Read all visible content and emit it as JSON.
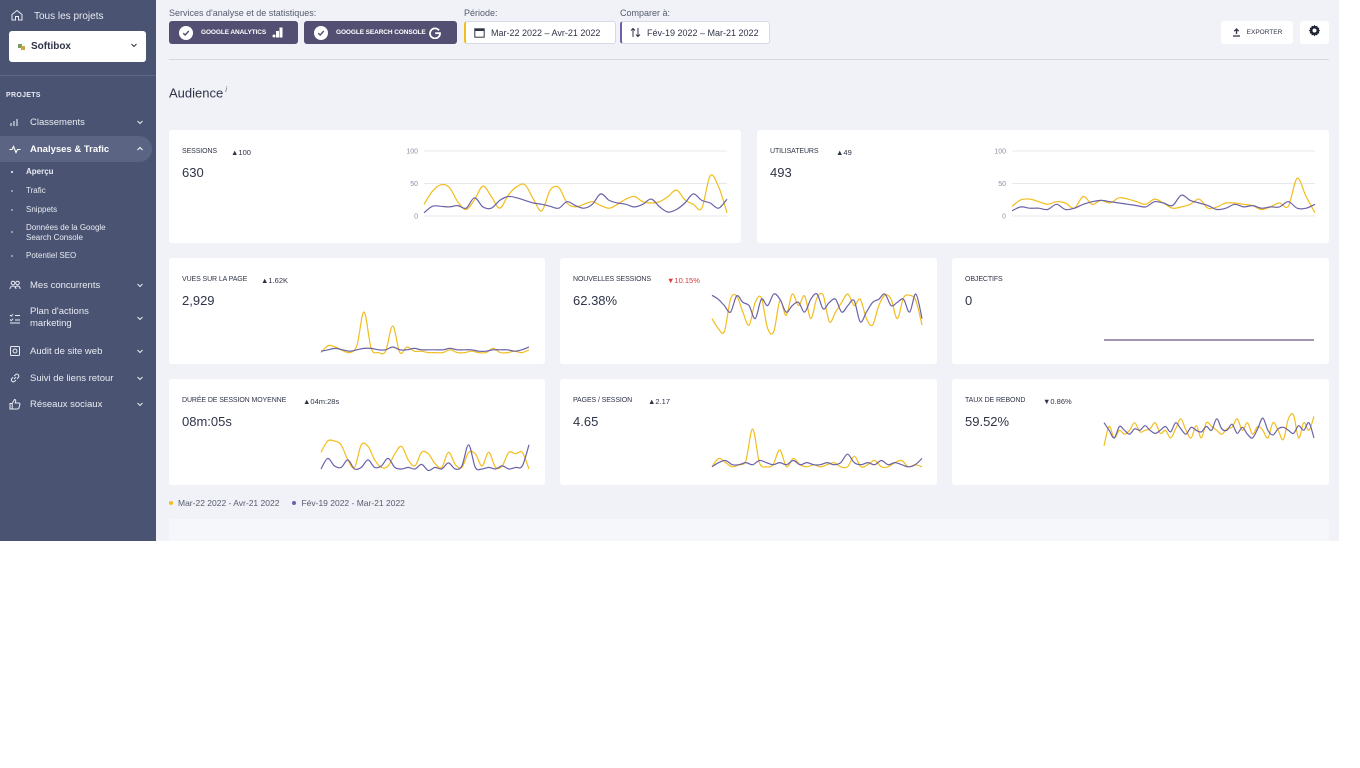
{
  "colors": {
    "period": "#f2bd1e",
    "compare": "#6b62a8",
    "sidebar": "#4a5472",
    "negative": "#d63b3b"
  },
  "sidebar": {
    "all_projects": "Tous les projets",
    "project": "Softibox",
    "section": "PROJETS",
    "items": [
      {
        "label": "Classements",
        "icon": "bar-chart-icon"
      },
      {
        "label": "Analyses & Trafic",
        "icon": "pulse-icon"
      },
      {
        "label": "Mes concurrents",
        "icon": "people-icon"
      },
      {
        "label": "Plan d'actions marketing",
        "icon": "checklist-icon"
      },
      {
        "label": "Audit de site web",
        "icon": "audit-icon"
      },
      {
        "label": "Suivi de liens retour",
        "icon": "link-icon"
      },
      {
        "label": "Réseaux sociaux",
        "icon": "thumbs-up-icon"
      }
    ],
    "sub_items": [
      "Aperçu",
      "Trafic",
      "Snippets",
      "Données de la Google Search Console",
      "Potentiel SEO"
    ]
  },
  "toolbar": {
    "services_label": "Services d'analyse et de statistiques:",
    "ga_label": "GOOGLE ANALYTICS",
    "gsc_label": "GOOGLE SEARCH CONSOLE",
    "period_label": "Période:",
    "period_value": "Mar-22 2022 – Avr-21 2022",
    "compare_label": "Comparer à:",
    "compare_value": "Fév-19 2022 – Mar-21 2022",
    "export_label": "EXPORTER"
  },
  "section_title": "Audience",
  "section_info": "i",
  "cards": [
    {
      "title": "SESSIONS",
      "change": "▲100",
      "change_dir": "up",
      "value": "630"
    },
    {
      "title": "UTILISATEURS",
      "change": "▲49",
      "change_dir": "up",
      "value": "493"
    },
    {
      "title": "VUES SUR LA PAGE",
      "change": "▲1.62K",
      "change_dir": "up",
      "value": "2,929"
    },
    {
      "title": "NOUVELLES SESSIONS",
      "change": "▼10.15%",
      "change_dir": "down",
      "value": "62.38%"
    },
    {
      "title": "OBJECTIFS",
      "change": "",
      "change_dir": "up",
      "value": "0"
    },
    {
      "title": "DURÉE DE SESSION MOYENNE",
      "change": "▲04m:28s",
      "change_dir": "up",
      "value": "08m:05s"
    },
    {
      "title": "PAGES / SESSION",
      "change": "▲2.17",
      "change_dir": "up",
      "value": "4.65"
    },
    {
      "title": "TAUX DE REBOND",
      "change": "▼0.86%",
      "change_dir": "up",
      "value": "59.52%"
    }
  ],
  "legend": {
    "period": "Mar-22 2022 - Avr-21 2022",
    "compare": "Fév-19 2022 - Mar-21 2022"
  },
  "chart_data": [
    {
      "type": "line",
      "name": "sessions",
      "yticks": [
        "100",
        "50",
        "0"
      ],
      "ylim": [
        0,
        100
      ],
      "series": [
        {
          "name": "Mar-22 2022 - Avr-21 2022",
          "values": [
            18,
            38,
            48,
            44,
            22,
            10,
            25,
            46,
            30,
            12,
            32,
            45,
            48,
            26,
            8,
            40,
            44,
            20,
            14,
            18,
            22,
            16,
            12,
            18,
            26,
            30,
            22,
            20,
            22,
            30,
            40,
            25,
            18,
            12,
            62,
            45,
            5
          ]
        },
        {
          "name": "Fév-19 2022 - Mar-21 2022",
          "values": [
            5,
            15,
            15,
            14,
            16,
            12,
            28,
            14,
            12,
            24,
            30,
            28,
            24,
            20,
            18,
            15,
            12,
            22,
            16,
            12,
            18,
            34,
            24,
            20,
            18,
            14,
            18,
            26,
            14,
            6,
            10,
            20,
            34,
            24,
            20,
            12,
            26
          ]
        }
      ]
    },
    {
      "type": "line",
      "name": "utilisateurs",
      "yticks": [
        "100",
        "50",
        "0"
      ],
      "ylim": [
        0,
        100
      ],
      "series": [
        {
          "name": "Mar-22 2022 - Avr-21 2022",
          "values": [
            15,
            25,
            26,
            22,
            18,
            22,
            20,
            12,
            30,
            18,
            24,
            20,
            28,
            26,
            22,
            18,
            26,
            20,
            12,
            14,
            18,
            26,
            12,
            14,
            20,
            20,
            18,
            16,
            10,
            14,
            20,
            15,
            58,
            30,
            5
          ]
        },
        {
          "name": "Fév-19 2022 - Mar-21 2022",
          "values": [
            8,
            14,
            12,
            12,
            10,
            18,
            10,
            12,
            18,
            22,
            24,
            22,
            20,
            18,
            16,
            14,
            22,
            20,
            16,
            32,
            24,
            20,
            16,
            10,
            12,
            18,
            14,
            16,
            12,
            14,
            14,
            22,
            12,
            12,
            18
          ]
        }
      ]
    },
    {
      "type": "line",
      "name": "vues",
      "series": [
        {
          "name": "Mar-22 2022 - Avr-21 2022",
          "values": [
            2,
            12,
            10,
            5,
            2,
            12,
            60,
            8,
            2,
            4,
            40,
            2,
            10,
            4,
            4,
            2,
            2,
            2,
            6,
            2,
            2,
            4,
            2,
            2,
            8,
            2,
            2,
            4,
            2,
            6
          ]
        },
        {
          "name": "Fév-19 2022 - Mar-21 2022",
          "values": [
            4,
            6,
            8,
            6,
            4,
            6,
            8,
            8,
            6,
            6,
            10,
            6,
            6,
            8,
            6,
            6,
            6,
            6,
            8,
            6,
            6,
            6,
            4,
            4,
            6,
            6,
            6,
            4,
            6,
            10
          ]
        }
      ]
    },
    {
      "type": "line",
      "name": "nouvelles",
      "series": [
        {
          "name": "Mar-22 2022 - Avr-21 2022",
          "values": [
            30,
            15,
            10,
            60,
            65,
            40,
            20,
            55,
            62,
            15,
            10,
            58,
            35,
            68,
            50,
            65,
            30,
            62,
            66,
            25,
            40,
            55,
            68,
            50,
            60,
            30,
            20,
            50,
            66,
            60,
            30,
            62,
            66,
            58,
            20
          ]
        },
        {
          "name": "Fév-19 2022 - Mar-21 2022",
          "values": [
            66,
            60,
            50,
            40,
            65,
            55,
            50,
            30,
            60,
            50,
            68,
            60,
            40,
            50,
            55,
            40,
            60,
            68,
            45,
            55,
            60,
            40,
            50,
            58,
            25,
            40,
            55,
            60,
            68,
            50,
            55,
            60,
            40,
            68,
            30
          ]
        }
      ]
    },
    {
      "type": "line",
      "name": "objectifs",
      "series": [
        {
          "name": "Mar-22 2022 - Avr-21 2022",
          "values": [
            0,
            0,
            0,
            0,
            0,
            0,
            0,
            0,
            0,
            0
          ]
        },
        {
          "name": "Fév-19 2022 - Mar-21 2022",
          "values": [
            0,
            0,
            0,
            0,
            0,
            0,
            0,
            0,
            0,
            0
          ]
        }
      ]
    },
    {
      "type": "line",
      "name": "duree",
      "series": [
        {
          "name": "Mar-22 2022 - Avr-21 2022",
          "values": [
            30,
            45,
            45,
            40,
            20,
            10,
            40,
            38,
            20,
            10,
            12,
            28,
            38,
            20,
            12,
            30,
            28,
            15,
            10,
            30,
            14,
            10,
            30,
            28,
            12,
            30,
            10,
            12,
            30,
            28,
            30,
            8
          ]
        },
        {
          "name": "Fév-19 2022 - Mar-21 2022",
          "values": [
            8,
            22,
            12,
            10,
            20,
            8,
            10,
            20,
            10,
            12,
            22,
            10,
            8,
            10,
            8,
            14,
            6,
            10,
            8,
            16,
            8,
            12,
            40,
            10,
            8,
            10,
            8,
            12,
            8,
            10,
            12,
            40
          ]
        }
      ]
    },
    {
      "type": "line",
      "name": "pages",
      "series": [
        {
          "name": "Mar-22 2022 - Avr-21 2022",
          "values": [
            4,
            12,
            8,
            4,
            6,
            10,
            40,
            8,
            4,
            6,
            20,
            4,
            12,
            6,
            4,
            6,
            4,
            6,
            8,
            4,
            4,
            14,
            4,
            6,
            10,
            4,
            4,
            8,
            10,
            4,
            6,
            4
          ]
        },
        {
          "name": "Fév-19 2022 - Mar-21 2022",
          "values": [
            4,
            8,
            10,
            6,
            6,
            8,
            6,
            10,
            8,
            6,
            8,
            6,
            10,
            6,
            8,
            6,
            6,
            8,
            6,
            8,
            16,
            8,
            6,
            8,
            6,
            10,
            6,
            8,
            6,
            4,
            6,
            12
          ]
        }
      ]
    },
    {
      "type": "line",
      "name": "rebond",
      "series": [
        {
          "name": "Mar-22 2022 - Avr-21 2022",
          "values": [
            20,
            45,
            30,
            40,
            35,
            40,
            50,
            38,
            40,
            42,
            50,
            36,
            40,
            30,
            42,
            55,
            40,
            30,
            46,
            30,
            50,
            45,
            40,
            35,
            42,
            44,
            55,
            40,
            50,
            35,
            45,
            40,
            30,
            50,
            40,
            28,
            55,
            60,
            30,
            50,
            40,
            58
          ]
        },
        {
          "name": "Fév-19 2022 - Mar-21 2022",
          "values": [
            50,
            40,
            30,
            45,
            40,
            35,
            42,
            40,
            46,
            40,
            36,
            40,
            45,
            38,
            50,
            42,
            35,
            44,
            40,
            38,
            45,
            40,
            55,
            42,
            40,
            48,
            36,
            44,
            35,
            30,
            42,
            56,
            40,
            34,
            42,
            44,
            40,
            36,
            46,
            40,
            50,
            30
          ]
        }
      ]
    }
  ]
}
